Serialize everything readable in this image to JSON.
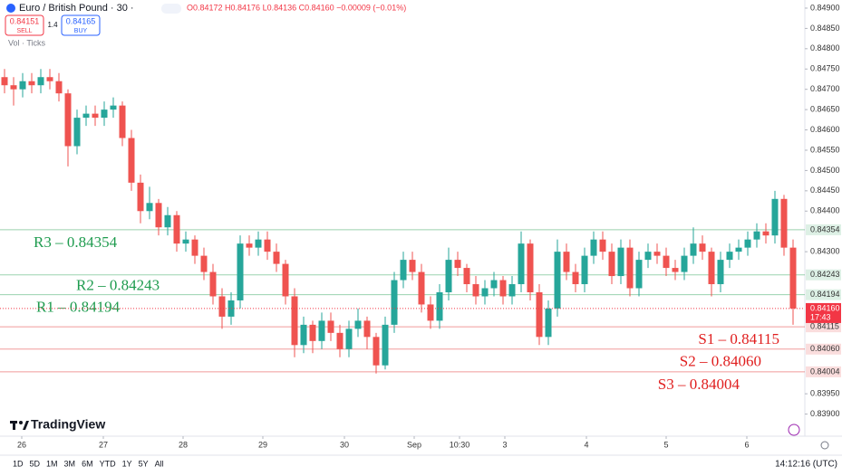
{
  "chart_data": {
    "type": "candlestick",
    "header": {
      "symbol": "Euro / British Pound · 30 ·",
      "ohlc": "O0.84172 H0.84176 L0.84136 C0.84160 −0.00009 (−0.01%)",
      "sell_price": "0.84151",
      "sell": "SELL",
      "spread": "1.4",
      "buy_price": "0.84165",
      "buy": "BUY",
      "volume": "Vol · Ticks"
    },
    "up_color": "#26a69a",
    "down_color": "#ef5350",
    "ohlc": [
      [
        0.8473,
        0.8475,
        0.8469,
        0.8471
      ],
      [
        0.8471,
        0.8473,
        0.8466,
        0.847
      ],
      [
        0.847,
        0.8474,
        0.8468,
        0.8472
      ],
      [
        0.8472,
        0.8474,
        0.8469,
        0.8471
      ],
      [
        0.8471,
        0.8475,
        0.8469,
        0.8473
      ],
      [
        0.8473,
        0.8475,
        0.847,
        0.8472
      ],
      [
        0.8472,
        0.8474,
        0.8467,
        0.8469
      ],
      [
        0.8469,
        0.847,
        0.8451,
        0.8456
      ],
      [
        0.8456,
        0.8465,
        0.8454,
        0.8463
      ],
      [
        0.8463,
        0.8466,
        0.8461,
        0.8464
      ],
      [
        0.8464,
        0.8466,
        0.8461,
        0.8463
      ],
      [
        0.8463,
        0.8467,
        0.8461,
        0.8465
      ],
      [
        0.8465,
        0.8468,
        0.8463,
        0.8466
      ],
      [
        0.8466,
        0.8467,
        0.8456,
        0.8458
      ],
      [
        0.8458,
        0.846,
        0.8445,
        0.8447
      ],
      [
        0.8447,
        0.8449,
        0.8437,
        0.844
      ],
      [
        0.844,
        0.8446,
        0.8438,
        0.8442
      ],
      [
        0.8442,
        0.8443,
        0.8434,
        0.8436
      ],
      [
        0.8436,
        0.8441,
        0.8434,
        0.8439
      ],
      [
        0.8439,
        0.844,
        0.843,
        0.8432
      ],
      [
        0.8432,
        0.8435,
        0.843,
        0.8433
      ],
      [
        0.8433,
        0.8434,
        0.8427,
        0.8429
      ],
      [
        0.8429,
        0.8431,
        0.8423,
        0.8425
      ],
      [
        0.8425,
        0.8427,
        0.8417,
        0.8419
      ],
      [
        0.8419,
        0.8421,
        0.8411,
        0.8414
      ],
      [
        0.8414,
        0.842,
        0.8412,
        0.8418
      ],
      [
        0.8418,
        0.8434,
        0.8416,
        0.8432
      ],
      [
        0.8432,
        0.8434,
        0.8429,
        0.8431
      ],
      [
        0.8431,
        0.8435,
        0.8429,
        0.8433
      ],
      [
        0.8433,
        0.8435,
        0.8428,
        0.843
      ],
      [
        0.843,
        0.8432,
        0.8425,
        0.8427
      ],
      [
        0.8427,
        0.8428,
        0.8417,
        0.8419
      ],
      [
        0.8419,
        0.8421,
        0.8404,
        0.8407
      ],
      [
        0.8407,
        0.8414,
        0.8405,
        0.8412
      ],
      [
        0.8412,
        0.8413,
        0.8405,
        0.8408
      ],
      [
        0.8408,
        0.8415,
        0.8406,
        0.8413
      ],
      [
        0.8413,
        0.8415,
        0.8408,
        0.841
      ],
      [
        0.841,
        0.8412,
        0.8404,
        0.8406
      ],
      [
        0.8406,
        0.8413,
        0.8404,
        0.8411
      ],
      [
        0.8411,
        0.8416,
        0.8409,
        0.8413
      ],
      [
        0.8413,
        0.8414,
        0.8406,
        0.8409
      ],
      [
        0.8409,
        0.841,
        0.84,
        0.8402
      ],
      [
        0.8402,
        0.8414,
        0.8401,
        0.8412
      ],
      [
        0.8412,
        0.8425,
        0.841,
        0.8423
      ],
      [
        0.8423,
        0.843,
        0.8421,
        0.8428
      ],
      [
        0.8428,
        0.843,
        0.8423,
        0.8425
      ],
      [
        0.8425,
        0.8427,
        0.8415,
        0.8417
      ],
      [
        0.8417,
        0.8419,
        0.8411,
        0.8413
      ],
      [
        0.8413,
        0.8422,
        0.8411,
        0.842
      ],
      [
        0.842,
        0.8431,
        0.8418,
        0.8428
      ],
      [
        0.8428,
        0.843,
        0.8424,
        0.8426
      ],
      [
        0.8426,
        0.8427,
        0.842,
        0.8422
      ],
      [
        0.8422,
        0.8424,
        0.8417,
        0.8419
      ],
      [
        0.8419,
        0.8423,
        0.8417,
        0.8421
      ],
      [
        0.8421,
        0.8425,
        0.8419,
        0.8423
      ],
      [
        0.8423,
        0.8424,
        0.8417,
        0.8419
      ],
      [
        0.8419,
        0.8424,
        0.8417,
        0.8422
      ],
      [
        0.8422,
        0.8435,
        0.842,
        0.8432
      ],
      [
        0.8432,
        0.8433,
        0.8418,
        0.842
      ],
      [
        0.842,
        0.8422,
        0.8407,
        0.8409
      ],
      [
        0.8409,
        0.8418,
        0.8407,
        0.8416
      ],
      [
        0.8416,
        0.8433,
        0.8414,
        0.843
      ],
      [
        0.843,
        0.8432,
        0.8423,
        0.8425
      ],
      [
        0.8425,
        0.8427,
        0.842,
        0.8422
      ],
      [
        0.8422,
        0.8431,
        0.842,
        0.8429
      ],
      [
        0.8429,
        0.8435,
        0.8427,
        0.8433
      ],
      [
        0.8433,
        0.8435,
        0.8428,
        0.843
      ],
      [
        0.843,
        0.8432,
        0.8422,
        0.8424
      ],
      [
        0.8424,
        0.8433,
        0.8422,
        0.8431
      ],
      [
        0.8431,
        0.8433,
        0.8419,
        0.8421
      ],
      [
        0.8421,
        0.843,
        0.8419,
        0.8428
      ],
      [
        0.8428,
        0.8432,
        0.8426,
        0.843
      ],
      [
        0.843,
        0.8432,
        0.8427,
        0.8429
      ],
      [
        0.8429,
        0.8431,
        0.8424,
        0.8426
      ],
      [
        0.8426,
        0.8428,
        0.8423,
        0.8425
      ],
      [
        0.8425,
        0.8431,
        0.8423,
        0.8429
      ],
      [
        0.8429,
        0.8436,
        0.8427,
        0.8432
      ],
      [
        0.8432,
        0.8434,
        0.8428,
        0.843
      ],
      [
        0.843,
        0.8431,
        0.8419,
        0.8422
      ],
      [
        0.8422,
        0.843,
        0.842,
        0.8428
      ],
      [
        0.8428,
        0.8432,
        0.8426,
        0.843
      ],
      [
        0.843,
        0.8433,
        0.8428,
        0.8431
      ],
      [
        0.8431,
        0.8435,
        0.8429,
        0.8433
      ],
      [
        0.8433,
        0.8437,
        0.8431,
        0.8435
      ],
      [
        0.8435,
        0.8437,
        0.8432,
        0.8434
      ],
      [
        0.8434,
        0.8445,
        0.8432,
        0.8443
      ],
      [
        0.8443,
        0.8444,
        0.8429,
        0.8431
      ],
      [
        0.8431,
        0.8433,
        0.8412,
        0.8416
      ]
    ],
    "xlim": [
      0,
      88.5
    ],
    "xticks": [
      {
        "value": 2.4,
        "label": "26"
      },
      {
        "value": 11.4,
        "label": "27"
      },
      {
        "value": 20.2,
        "label": "28"
      },
      {
        "value": 29,
        "label": "29"
      },
      {
        "value": 38,
        "label": "30"
      },
      {
        "value": 45.7,
        "label": "Sep"
      },
      {
        "value": 50.7,
        "label": "10:30"
      },
      {
        "value": 55.7,
        "label": "3"
      },
      {
        "value": 64.7,
        "label": "4"
      },
      {
        "value": 73.5,
        "label": "5"
      },
      {
        "value": 82.4,
        "label": "6"
      }
    ],
    "ylim": [
      0.8385,
      0.8492
    ],
    "yticks": [
      {
        "value": 0.849,
        "label": "0.84900"
      },
      {
        "value": 0.8485,
        "label": "0.84850"
      },
      {
        "value": 0.848,
        "label": "0.84800"
      },
      {
        "value": 0.8475,
        "label": "0.84750"
      },
      {
        "value": 0.847,
        "label": "0.84700"
      },
      {
        "value": 0.8465,
        "label": "0.84650"
      },
      {
        "value": 0.846,
        "label": "0.84600"
      },
      {
        "value": 0.8455,
        "label": "0.84550"
      },
      {
        "value": 0.845,
        "label": "0.84500"
      },
      {
        "value": 0.8445,
        "label": "0.84450"
      },
      {
        "value": 0.844,
        "label": "0.84400"
      },
      {
        "value": 0.843,
        "label": "0.84300"
      },
      {
        "value": 0.8395,
        "label": "0.83950"
      },
      {
        "value": 0.839,
        "label": "0.83900"
      }
    ],
    "levels": [
      {
        "text": "R3 – 0.84354",
        "value": 0.84354,
        "axis_label": "0.84354",
        "color": "#1e9b4e"
      },
      {
        "text": "R2 – 0.84243",
        "value": 0.84243,
        "axis_label": "0.84243",
        "color": "#1e9b4e"
      },
      {
        "text": "R1 – 0.84194",
        "value": 0.84194,
        "axis_label": "0.84194",
        "color": "#1e9b4e"
      },
      {
        "text": "S1 – 0.84115",
        "value": 0.84115,
        "axis_label": "0.84115",
        "color": "#e01e1e"
      },
      {
        "text": "S2 – 0.84060",
        "value": 0.8406,
        "axis_label": "0.84060",
        "color": "#e01e1e"
      },
      {
        "text": "S3 – 0.84004",
        "value": 0.84004,
        "axis_label": "0.84004",
        "color": "#e01e1e"
      }
    ],
    "last_price": {
      "value": 0.8416,
      "label": "0.84160",
      "countdown": "17:43",
      "color": "#f23645"
    },
    "logo": "TradingView",
    "timeframes": [
      "1D",
      "5D",
      "1M",
      "3M",
      "6M",
      "YTD",
      "1Y",
      "5Y",
      "All"
    ],
    "clock": "14:12:16 (UTC)"
  }
}
